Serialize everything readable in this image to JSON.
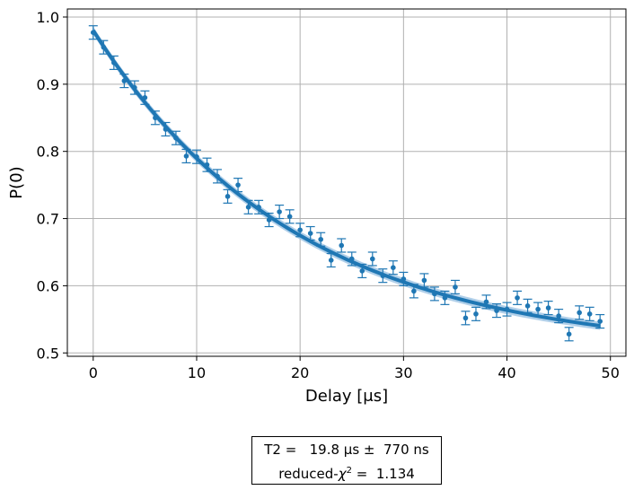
{
  "chart_data": {
    "type": "scatter",
    "xlabel": "Delay [μs]",
    "ylabel": "P(0)",
    "xlim": [
      -2.5,
      51.5
    ],
    "ylim": [
      0.495,
      1.012
    ],
    "xticks": [
      0,
      10,
      20,
      30,
      40,
      50
    ],
    "yticks": [
      0.5,
      0.6,
      0.7,
      0.8,
      0.9,
      1.0
    ],
    "xtick_labels": [
      "0",
      "10",
      "20",
      "30",
      "40",
      "50"
    ],
    "ytick_labels": [
      "0.5",
      "0.6",
      "0.7",
      "0.8",
      "0.9",
      "1.0"
    ],
    "grid": true,
    "series": [
      {
        "x": [
          0,
          1,
          2,
          3,
          4,
          5,
          6,
          7,
          8,
          9,
          10,
          11,
          12,
          13,
          14,
          15,
          16,
          17,
          18,
          19,
          20,
          21,
          22,
          23,
          24,
          25,
          26,
          27,
          28,
          29,
          30,
          31,
          32,
          33,
          34,
          35,
          36,
          37,
          38,
          39,
          40,
          41,
          42,
          43,
          44,
          45,
          46,
          47,
          48,
          49
        ],
        "y": [
          0.977,
          0.955,
          0.932,
          0.905,
          0.895,
          0.88,
          0.85,
          0.833,
          0.82,
          0.793,
          0.792,
          0.78,
          0.763,
          0.733,
          0.75,
          0.717,
          0.717,
          0.698,
          0.71,
          0.703,
          0.683,
          0.678,
          0.669,
          0.638,
          0.66,
          0.64,
          0.622,
          0.64,
          0.615,
          0.627,
          0.61,
          0.592,
          0.608,
          0.588,
          0.582,
          0.598,
          0.552,
          0.558,
          0.576,
          0.563,
          0.565,
          0.582,
          0.57,
          0.565,
          0.567,
          0.555,
          0.528,
          0.56,
          0.558,
          0.547
        ],
        "yerr": 0.01
      }
    ],
    "fit": {
      "model": "exponential decay",
      "amplitude": 0.48,
      "offset": 0.5,
      "tau": 19.8,
      "band": 0.006
    },
    "colors": {
      "points": "#1f77b4",
      "fit_line": "#1f77b4",
      "band": "#9cc3e4",
      "grid": "#b0b0b0"
    }
  },
  "fit_box": {
    "line1": "T2 =   19.8 μs ±  770 ns",
    "line2_prefix": "reduced-",
    "line2_chi": "χ",
    "line2_sup": "2",
    "line2_suffix": " =  1.134"
  }
}
